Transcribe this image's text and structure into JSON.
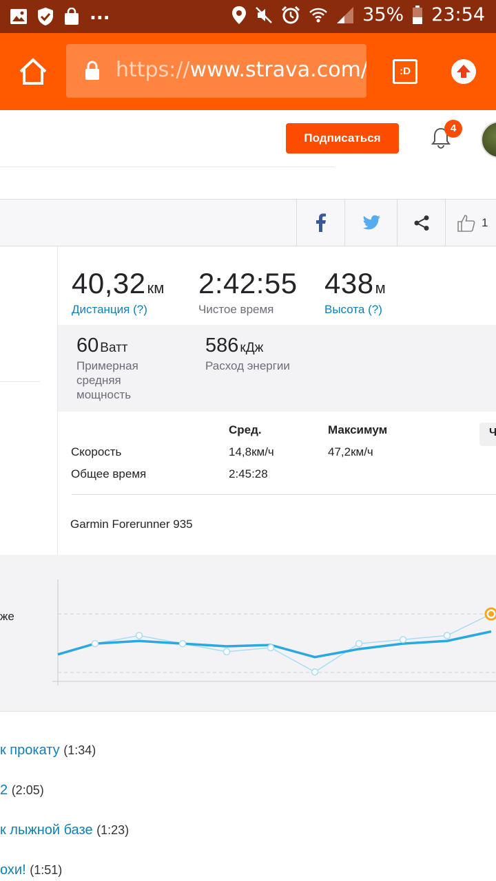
{
  "status_bar": {
    "battery": "35%",
    "time": "23:54",
    "more": "..."
  },
  "browser": {
    "url_scheme": "https://",
    "url_host": "www.strava.com/",
    "tab_label": ":D",
    "colors": {
      "toolbar": "#ff5a00",
      "status": "#8a2b0c"
    }
  },
  "header": {
    "subscribe_label": "Подписаться",
    "notifications_count": "4"
  },
  "share_bar": {
    "kudos_count": "1"
  },
  "stats": {
    "distance": {
      "value": "40,32",
      "unit": "км",
      "label": "Дистанция (?)"
    },
    "moving_time": {
      "value": "2:42:55",
      "label": "Чистое время"
    },
    "elevation": {
      "value": "438",
      "unit": "м",
      "label": "Высота (?)"
    },
    "power": {
      "value": "60",
      "unit": "Ватт",
      "label_lines": [
        "Примерная",
        "средняя",
        "мощность"
      ]
    },
    "energy": {
      "value": "586",
      "unit": "кДж",
      "label": "Расход энергии"
    }
  },
  "more_stats": {
    "col_avg": "Сред.",
    "col_max": "Максимум",
    "tab_label": "Ч",
    "rows": [
      {
        "label": "Скорость",
        "avg": "14,8км/ч",
        "max": "47,2км/ч"
      },
      {
        "label": "Общее время",
        "avg": "2:45:28",
        "max": ""
      }
    ],
    "device": "Garmin Forerunner 935"
  },
  "chart": {
    "label": "же",
    "colors": {
      "line": "#2aa9e0",
      "thin": "#a9dcf2",
      "highlight": "#f5a623"
    }
  },
  "chart_data": {
    "type": "line",
    "series": [
      {
        "values": [
          0.4,
          0.56,
          0.6,
          0.56,
          0.52,
          0.54,
          0.36,
          0.48,
          0.56,
          0.6,
          0.74
        ]
      },
      {
        "values": [
          0.4,
          0.56,
          0.68,
          0.56,
          0.44,
          0.5,
          0.14,
          0.56,
          0.62,
          0.68,
          1.0
        ]
      }
    ],
    "grid": true
  },
  "segments": [
    {
      "name": "к прокату",
      "time": "(1:34)"
    },
    {
      "name": "2",
      "time": "(2:05)"
    },
    {
      "name": "к лыжной базе",
      "time": "(1:23)"
    },
    {
      "name": "охи!",
      "time": "(1:51)"
    }
  ]
}
